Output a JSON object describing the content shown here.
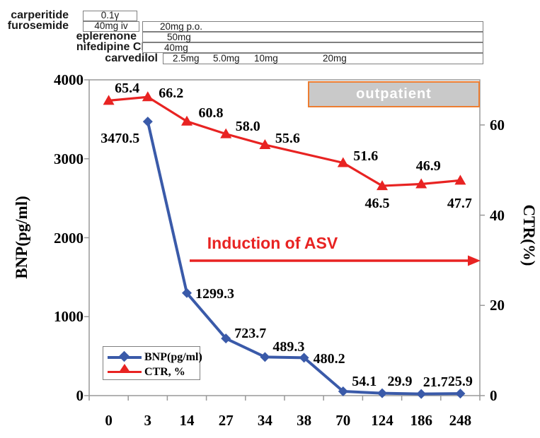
{
  "colors": {
    "bnp_blue": "#3a5aa9",
    "ctr_red": "#e82322",
    "outpatient_fill": "#c9c9c9",
    "outpatient_border": "#ed7d31",
    "med_box_border": "#808080",
    "axis_line": "#999999"
  },
  "medications": {
    "rows": [
      {
        "name": "carperitide",
        "segments": [
          {
            "label": "0.1γ"
          }
        ]
      },
      {
        "name": "furosemide",
        "segments": [
          {
            "label": "40mg iv"
          },
          {
            "label": "20mg p.o."
          }
        ]
      },
      {
        "name": "eplerenone",
        "segments": [
          {
            "label": "50mg"
          }
        ]
      },
      {
        "name": "nifedipine CR",
        "segments": [
          {
            "label": "40mg"
          }
        ]
      },
      {
        "name": "carvedilol",
        "segments": [
          {
            "label": "2.5mg"
          },
          {
            "label": "5.0mg"
          },
          {
            "label": "10mg"
          },
          {
            "label": "20mg"
          }
        ]
      }
    ]
  },
  "chart_data": {
    "type": "line",
    "categories": [
      "0",
      "3",
      "14",
      "27",
      "34",
      "38",
      "70",
      "124",
      "186",
      "248"
    ],
    "series": [
      {
        "name": "BNP(pg/ml)",
        "axis": "left",
        "marker": "diamond",
        "values": [
          null,
          3470.5,
          1299.3,
          723.7,
          489.3,
          480.2,
          54.1,
          29.9,
          21.7,
          25.9
        ]
      },
      {
        "name": "CTR, %",
        "axis": "right",
        "marker": "triangle",
        "values": [
          65.4,
          66.2,
          60.8,
          58.0,
          55.6,
          null,
          51.6,
          46.5,
          46.9,
          47.7
        ]
      }
    ],
    "left_axis": {
      "title": "BNP(pg/ml)",
      "min": 0,
      "max": 4000,
      "ticks": [
        0,
        1000,
        2000,
        3000,
        4000
      ]
    },
    "right_axis": {
      "title": "CTR(%)",
      "min": 0,
      "max": 70,
      "ticks": [
        0,
        20,
        40,
        60
      ]
    },
    "legend_position": "inside-bottom-left",
    "grid": "off",
    "annotations": {
      "outpatient": "outpatient",
      "induction": "Induction of ASV"
    }
  }
}
